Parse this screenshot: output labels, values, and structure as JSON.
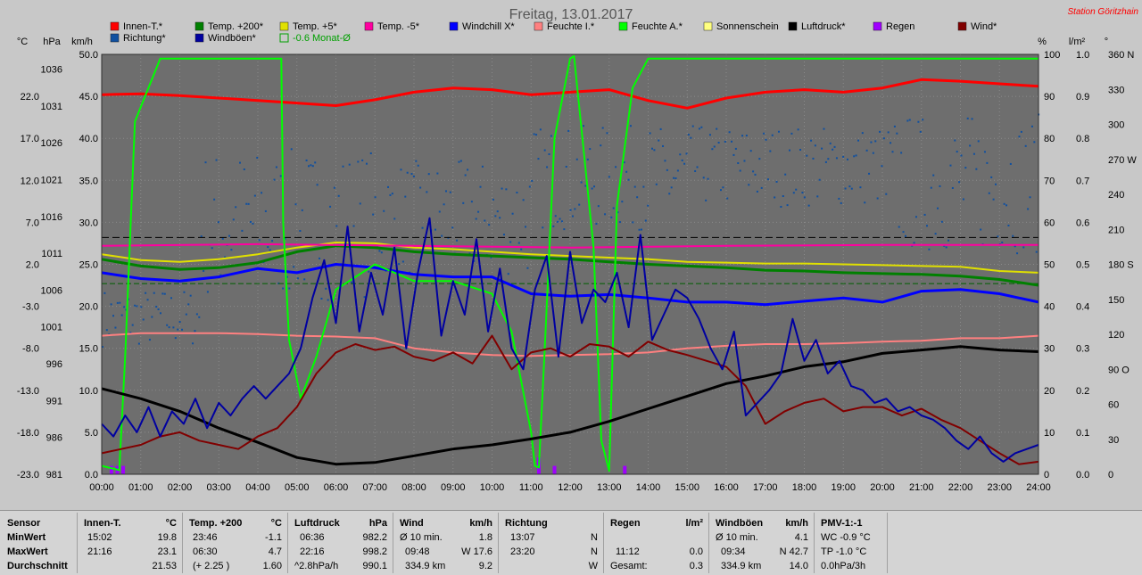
{
  "title": "Freitag, 13.01.2017",
  "station": "Station Göritzhain",
  "axis_headers": {
    "celsius": "°C",
    "hpa": "hPa",
    "kmh": "km/h",
    "percent": "%",
    "lm2": "l/m²",
    "degree": "°"
  },
  "legend": [
    {
      "label": "Innen-T.*",
      "color": "#ff0000"
    },
    {
      "label": "Temp. +200*",
      "color": "#008000"
    },
    {
      "label": "Temp. +5*",
      "color": "#e0e000"
    },
    {
      "label": "Temp. -5*",
      "color": "#ff00a0"
    },
    {
      "label": "Windchill X*",
      "color": "#0000ff"
    },
    {
      "label": "Feuchte I.*",
      "color": "#ff8080"
    },
    {
      "label": "Feuchte A.*",
      "color": "#00ff00"
    },
    {
      "label": "Sonnenschein",
      "color": "#ffff80"
    },
    {
      "label": "Luftdruck*",
      "color": "#000000"
    },
    {
      "label": "Regen",
      "color": "#a000ff"
    },
    {
      "label": "Wind*",
      "color": "#800000"
    },
    {
      "label": "Richtung*",
      "color": "#1050a0"
    },
    {
      "label": "Windböen*",
      "color": "#0000a0"
    },
    {
      "label": "-0.6 Monat-Ø",
      "color": "#00a000",
      "outline": true
    }
  ],
  "chart_data": {
    "type": "line",
    "x_ticks": [
      "00:00",
      "01:00",
      "02:00",
      "03:00",
      "04:00",
      "05:00",
      "06:00",
      "07:00",
      "08:00",
      "09:00",
      "10:00",
      "11:00",
      "12:00",
      "13:00",
      "14:00",
      "15:00",
      "16:00",
      "17:00",
      "18:00",
      "19:00",
      "20:00",
      "21:00",
      "22:00",
      "23:00",
      "24:00"
    ],
    "x_range_hours": [
      0,
      24
    ],
    "left_axes": {
      "celsius": {
        "ticks": [
          "22.0",
          "17.0",
          "12.0",
          "7.0",
          "2.0",
          "-3.0",
          "-8.0",
          "-13.0",
          "-18.0",
          "-23.0"
        ],
        "range": [
          -23,
          27
        ]
      },
      "hpa": {
        "ticks": [
          "1036",
          "1031",
          "1026",
          "1021",
          "1016",
          "1011",
          "1006",
          "1001",
          "996",
          "991",
          "986",
          "981"
        ],
        "range": [
          981,
          1038
        ]
      },
      "kmh": {
        "ticks": [
          "50.0",
          "45.0",
          "40.0",
          "35.0",
          "30.0",
          "25.0",
          "20.0",
          "15.0",
          "10.0",
          "5.0",
          "0.0"
        ],
        "range": [
          0,
          50
        ]
      }
    },
    "right_axes": {
      "percent": {
        "ticks": [
          "100",
          "90",
          "80",
          "70",
          "60",
          "50",
          "40",
          "30",
          "20",
          "10",
          "0"
        ],
        "range": [
          0,
          100
        ]
      },
      "lm2": {
        "ticks": [
          "1.0",
          "0.9",
          "0.8",
          "0.7",
          "0.6",
          "0.5",
          "0.4",
          "0.3",
          "0.2",
          "0.1",
          "0.0"
        ],
        "range": [
          0,
          1
        ]
      },
      "degree": {
        "ticks": [
          "360 N",
          "330",
          "300",
          "270 W",
          "240",
          "210",
          "180 S",
          "150",
          "120",
          "90 O",
          "60",
          "30",
          "0"
        ],
        "range": [
          0,
          360
        ]
      }
    },
    "series": [
      {
        "name": "Innen-T.*",
        "axis": "kmh",
        "color": "#ff0000",
        "width": 3,
        "x": [
          0,
          1,
          2,
          3,
          4,
          5,
          6,
          7,
          8,
          9,
          10,
          11,
          12,
          13,
          14,
          15,
          16,
          17,
          18,
          19,
          20,
          21,
          22,
          23,
          24
        ],
        "y": [
          45.2,
          45.3,
          45.1,
          44.8,
          44.5,
          44.2,
          43.9,
          44.6,
          45.5,
          46.0,
          45.8,
          45.2,
          45.5,
          45.8,
          44.5,
          43.6,
          44.8,
          45.5,
          45.8,
          45.5,
          46.0,
          47.0,
          46.8,
          46.5,
          46.2
        ]
      },
      {
        "name": "Temp. +200*",
        "axis": "kmh",
        "color": "#008000",
        "width": 3,
        "x": [
          0,
          1,
          2,
          3,
          4,
          5,
          6,
          7,
          8,
          9,
          10,
          11,
          12,
          13,
          14,
          15,
          16,
          17,
          18,
          19,
          20,
          21,
          22,
          23,
          24
        ],
        "y": [
          25.6,
          24.8,
          24.4,
          24.6,
          25.2,
          26.5,
          27.2,
          27.0,
          26.5,
          26.2,
          26.0,
          25.8,
          25.6,
          25.3,
          25.0,
          24.8,
          24.6,
          24.3,
          24.2,
          24.0,
          23.9,
          23.8,
          23.6,
          23.2,
          22.5
        ]
      },
      {
        "name": "Temp. +5*",
        "axis": "kmh",
        "color": "#e0e000",
        "width": 2,
        "x": [
          0,
          1,
          2,
          3,
          4,
          5,
          6,
          7,
          8,
          9,
          10,
          11,
          12,
          13,
          14,
          15,
          16,
          17,
          18,
          19,
          20,
          21,
          22,
          23,
          24
        ],
        "y": [
          26.2,
          25.5,
          25.3,
          25.6,
          26.2,
          27.0,
          27.6,
          27.5,
          27.0,
          26.8,
          26.5,
          26.2,
          26.0,
          25.8,
          25.6,
          25.3,
          25.2,
          25.1,
          25.1,
          25.0,
          24.9,
          24.8,
          24.7,
          24.2,
          24.0
        ]
      },
      {
        "name": "Temp. -5*",
        "axis": "kmh",
        "color": "#ff00a0",
        "width": 2,
        "x": [
          0,
          4,
          8,
          12,
          16,
          20,
          24
        ],
        "y": [
          27.2,
          27.4,
          27.2,
          27.0,
          27.2,
          27.3,
          27.3
        ]
      },
      {
        "name": "Windchill X*",
        "axis": "kmh",
        "color": "#0000ff",
        "width": 3,
        "x": [
          0,
          1,
          2,
          3,
          4,
          5,
          6,
          7,
          8,
          9,
          10,
          11,
          12,
          13,
          14,
          15,
          16,
          17,
          18,
          19,
          20,
          21,
          22,
          23,
          24
        ],
        "y": [
          24.0,
          23.3,
          23.0,
          23.5,
          24.5,
          24.0,
          25.0,
          24.6,
          23.8,
          23.5,
          23.5,
          21.5,
          21.2,
          21.4,
          21.0,
          20.5,
          20.5,
          20.2,
          20.6,
          21.0,
          20.5,
          21.8,
          22.0,
          21.5,
          20.5
        ]
      },
      {
        "name": "Feuchte I.*",
        "axis": "kmh",
        "color": "#ff8080",
        "width": 2,
        "x": [
          0,
          1,
          2,
          3,
          4,
          5,
          6,
          7,
          8,
          9,
          10,
          11,
          12,
          13,
          14,
          15,
          16,
          17,
          18,
          19,
          20,
          21,
          22,
          23,
          24
        ],
        "y": [
          16.5,
          16.8,
          16.8,
          16.8,
          16.7,
          16.5,
          16.4,
          16.2,
          15.0,
          14.5,
          14.2,
          14.1,
          14.2,
          14.3,
          14.5,
          15.0,
          15.3,
          15.5,
          15.5,
          15.6,
          15.8,
          15.9,
          16.2,
          16.2,
          16.5
        ]
      },
      {
        "name": "Feuchte A.*",
        "axis": "kmh",
        "color": "#00ff00",
        "width": 2,
        "x": [
          0,
          0.45,
          0.6,
          0.85,
          1.5,
          4.6,
          4.65,
          4.8,
          5.1,
          5.5,
          6.0,
          7.0,
          8.0,
          9.0,
          10.0,
          10.5,
          11.0,
          11.1,
          11.2,
          11.35,
          11.6,
          12.0,
          12.1,
          12.6,
          12.8,
          13.0,
          13.2,
          13.6,
          14.0,
          24.0
        ],
        "y": [
          1.0,
          0.5,
          14.0,
          42.0,
          49.5,
          49.5,
          30.0,
          16.0,
          9.0,
          14.0,
          22.0,
          25.0,
          23.0,
          23.0,
          21.5,
          17.0,
          5.0,
          1.0,
          0.8,
          15.0,
          40.0,
          49.5,
          49.8,
          27.0,
          4.0,
          0.4,
          32.0,
          46.0,
          49.5,
          49.5
        ]
      },
      {
        "name": "Luftdruck*",
        "axis": "kmh",
        "color": "#000000",
        "width": 3,
        "x": [
          0,
          1,
          2,
          3,
          4,
          5,
          6,
          7,
          8,
          9,
          10,
          11,
          12,
          13,
          14,
          15,
          16,
          17,
          18,
          19,
          20,
          21,
          22,
          23,
          24
        ],
        "y": [
          10.2,
          9.0,
          7.5,
          5.5,
          3.8,
          2.0,
          1.2,
          1.4,
          2.2,
          3.0,
          3.5,
          4.2,
          5.0,
          6.3,
          7.8,
          9.3,
          10.8,
          11.7,
          12.8,
          13.4,
          14.4,
          14.8,
          15.2,
          14.8,
          14.6
        ]
      },
      {
        "name": "Wind*",
        "axis": "kmh",
        "color": "#800000",
        "width": 2,
        "x": [
          0,
          0.5,
          1,
          1.5,
          2,
          2.5,
          3,
          3.5,
          4,
          4.5,
          5,
          5.5,
          6,
          6.5,
          7,
          7.5,
          8,
          8.5,
          9,
          9.5,
          10,
          10.5,
          11,
          11.5,
          12,
          12.5,
          13,
          13.5,
          14,
          14.5,
          15,
          15.5,
          16,
          16.5,
          17,
          17.5,
          18,
          18.5,
          19,
          19.5,
          20,
          20.5,
          21,
          21.5,
          22,
          22.5,
          23,
          23.5,
          24
        ],
        "y": [
          2.5,
          3.0,
          3.5,
          4.5,
          5.0,
          4.0,
          3.5,
          3.0,
          4.5,
          5.5,
          8.0,
          12.0,
          14.5,
          15.5,
          14.8,
          15.2,
          14.0,
          13.5,
          14.5,
          13.2,
          16.5,
          12.5,
          14.5,
          15.0,
          14.0,
          15.5,
          15.2,
          14.0,
          15.8,
          14.8,
          14.2,
          13.5,
          12.8,
          10.5,
          6.0,
          7.5,
          8.5,
          9.0,
          7.5,
          8.0,
          8.0,
          7.0,
          7.8,
          6.5,
          5.5,
          4.0,
          2.5,
          1.2,
          1.5
        ]
      },
      {
        "name": "Windböen*",
        "axis": "kmh",
        "color": "#0000a0",
        "width": 2,
        "x": [
          0,
          0.3,
          0.6,
          0.9,
          1.2,
          1.5,
          1.8,
          2.1,
          2.4,
          2.7,
          3.0,
          3.3,
          3.6,
          3.9,
          4.2,
          4.5,
          4.8,
          5.1,
          5.4,
          5.7,
          6.0,
          6.3,
          6.6,
          6.9,
          7.2,
          7.5,
          7.8,
          8.1,
          8.4,
          8.7,
          9.0,
          9.3,
          9.6,
          9.9,
          10.2,
          10.5,
          10.8,
          11.1,
          11.4,
          11.7,
          12.0,
          12.3,
          12.6,
          12.9,
          13.2,
          13.5,
          13.8,
          14.1,
          14.4,
          14.7,
          15.0,
          15.3,
          15.6,
          15.9,
          16.2,
          16.5,
          16.8,
          17.1,
          17.4,
          17.7,
          18.0,
          18.3,
          18.6,
          18.9,
          19.2,
          19.5,
          19.8,
          20.1,
          20.4,
          20.7,
          21.0,
          21.3,
          21.6,
          21.9,
          22.2,
          22.5,
          22.8,
          23.1,
          23.4,
          23.7,
          24.0
        ],
        "y": [
          6.0,
          4.5,
          7.0,
          5.0,
          8.0,
          4.5,
          7.5,
          6.0,
          9.0,
          5.5,
          8.5,
          7.0,
          9.0,
          10.5,
          9.0,
          10.5,
          12.0,
          15.0,
          21.0,
          25.5,
          18.0,
          29.5,
          17.0,
          24.0,
          19.0,
          27.0,
          15.0,
          24.0,
          30.5,
          16.5,
          23.0,
          19.0,
          28.0,
          17.0,
          24.5,
          15.0,
          12.5,
          22.0,
          26.0,
          14.0,
          26.5,
          18.0,
          22.0,
          20.5,
          24.0,
          17.5,
          28.5,
          16.0,
          19.0,
          22.0,
          21.0,
          18.5,
          15.0,
          12.5,
          17.0,
          7.0,
          8.5,
          10.0,
          12.0,
          18.5,
          13.5,
          16.0,
          12.0,
          13.5,
          10.5,
          10.0,
          8.5,
          9.0,
          7.5,
          8.0,
          7.0,
          6.5,
          5.5,
          4.0,
          3.0,
          4.5,
          2.5,
          1.5,
          2.5,
          3.0,
          3.5
        ]
      },
      {
        "name": "Regen",
        "axis": "lm2",
        "color": "#a000ff",
        "type": "bar",
        "x": [
          0.25,
          0.4,
          0.55,
          11.2,
          11.6,
          13.4
        ],
        "y": [
          0.02,
          0.02,
          0.02,
          0.04,
          0.02,
          0.02
        ]
      }
    ],
    "scatter_series": {
      "name": "Richtung*",
      "axis": "degree",
      "color": "#1050a0",
      "bands": [
        {
          "from": 0,
          "to": 2.5,
          "low": 110,
          "high": 160
        },
        {
          "from": 2.5,
          "to": 7,
          "low": 150,
          "high": 280
        },
        {
          "from": 7,
          "to": 11,
          "low": 170,
          "high": 270
        },
        {
          "from": 11,
          "to": 15,
          "low": 210,
          "high": 300
        },
        {
          "from": 15,
          "to": 20,
          "low": 230,
          "high": 300
        },
        {
          "from": 20,
          "to": 24,
          "low": 190,
          "high": 310
        }
      ]
    },
    "hlines": [
      {
        "axis": "kmh",
        "value": 28.2,
        "color": "#000000",
        "dash": "8 4"
      },
      {
        "axis": "kmh",
        "value": 22.7,
        "color": "#006000",
        "dash": "6 3"
      }
    ]
  },
  "stats": {
    "row_labels": {
      "sensor": "Sensor",
      "min": "MinWert",
      "max": "MaxWert",
      "avg": "Durchschnitt"
    },
    "innen": {
      "title": "Innen-T.",
      "unit": "°C",
      "min_time": "15:02",
      "min_val": "19.8",
      "max_time": "21:16",
      "max_val": "23.1",
      "avg_val": "21.53"
    },
    "temp200": {
      "title": "Temp. +200",
      "unit": "°C",
      "min_time": "23:46",
      "min_val": "-1.1",
      "max_time": "06:30",
      "max_val": "4.7",
      "avg_time": "(+ 2.25 )",
      "avg_val": "1.60"
    },
    "luftdruck": {
      "title": "Luftdruck",
      "unit": "hPa",
      "min_time": "06:36",
      "min_val": "982.2",
      "max_time": "22:16",
      "max_val": "998.2",
      "avg_time": "^2.8hPa/h",
      "avg_val": "990.1"
    },
    "wind": {
      "title": "Wind",
      "unit": "km/h",
      "min_time": "Ø 10 min.",
      "min_val": "1.8",
      "max_time": "09:48",
      "max_val": "W 17.6",
      "avg_time": "334.9 km",
      "avg_val": "9.2"
    },
    "richtung": {
      "title": "Richtung",
      "min_time": "13:07",
      "min_val": "N",
      "max_time": "23:20",
      "max_val": "N",
      "avg_val": "W"
    },
    "regen": {
      "title": "Regen",
      "unit": "l/m²",
      "max_time": "11:12",
      "max_val": "0.0",
      "avg_time": "Gesamt:",
      "avg_val": "0.3"
    },
    "windboeen": {
      "title": "Windböen",
      "unit": "km/h",
      "min_time": "Ø 10 min.",
      "min_val": "4.1",
      "max_time": "09:34",
      "max_val": "N 42.7",
      "avg_time": "334.9 km",
      "avg_val": "14.0"
    },
    "pmv": {
      "title": "PMV-1:-1",
      "min_time": "WC -0.9 °C",
      "max_time": "TP -1.0 °C",
      "avg_time": "0.0hPa/3h"
    }
  }
}
